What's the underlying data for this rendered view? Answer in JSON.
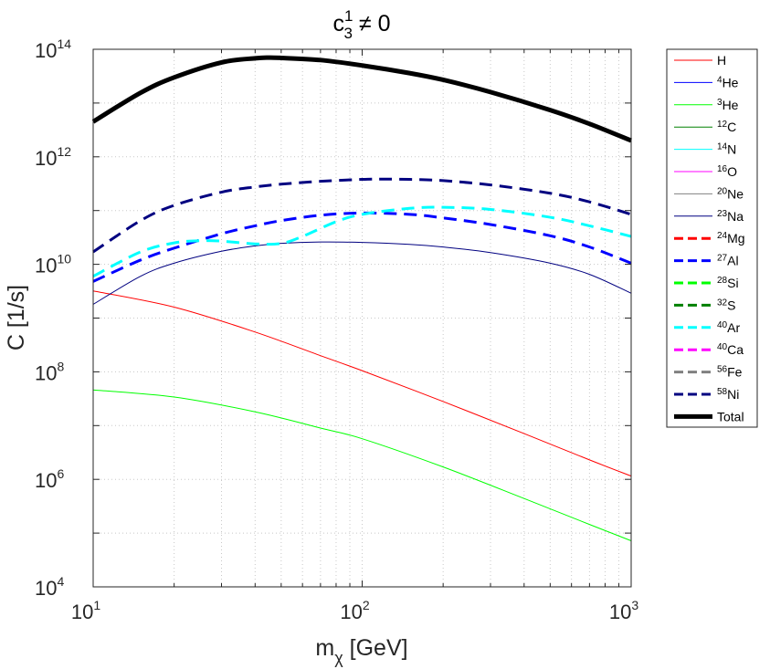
{
  "chart_data": {
    "type": "line",
    "title": "c",
    "title_sub": "3",
    "title_sup": "1",
    "title_rest": " ≠ 0",
    "xlabel": "m",
    "xlabel_sub": "χ",
    "xlabel_rest": " [GeV]",
    "ylabel": "C [1/s]",
    "xscale": "log",
    "yscale": "log",
    "xlim": [
      10,
      1000
    ],
    "ylim": [
      10000,
      100000000000000
    ],
    "grid": true,
    "legend_position": "outside-right",
    "x_ticks": [
      {
        "value": 10,
        "base": "10",
        "exp": "1"
      },
      {
        "value": 100,
        "base": "10",
        "exp": "2"
      },
      {
        "value": 1000,
        "base": "10",
        "exp": "3"
      }
    ],
    "y_ticks": [
      {
        "value": 10000,
        "base": "10",
        "exp": "4"
      },
      {
        "value": 1000000,
        "base": "10",
        "exp": "6"
      },
      {
        "value": 100000000,
        "base": "10",
        "exp": "8"
      },
      {
        "value": 10000000000,
        "base": "10",
        "exp": "10"
      },
      {
        "value": 1000000000000,
        "base": "10",
        "exp": "12"
      },
      {
        "value": 100000000000000,
        "base": "10",
        "exp": "14"
      }
    ],
    "series": [
      {
        "name": "H",
        "label_sup": "",
        "label_text": "H",
        "color": "#ff0000",
        "dash": "solid",
        "width": 1,
        "x": [
          10,
          20,
          40,
          70,
          100,
          200,
          400,
          700,
          1000
        ],
        "values": [
          3200000000.0,
          1600000000.0,
          550000000.0,
          200000000.0,
          105000000.0,
          28000000.0,
          7100000.0,
          2300000.0,
          1150000.0
        ]
      },
      {
        "name": "4He",
        "label_sup": "4",
        "label_text": "He",
        "color": "#0000ff",
        "dash": "solid",
        "width": 1,
        "x": [],
        "values": []
      },
      {
        "name": "3He",
        "label_sup": "3",
        "label_text": "He",
        "color": "#00ff00",
        "dash": "solid",
        "width": 1,
        "x": [
          10,
          20,
          40,
          70,
          100,
          200,
          400,
          700,
          1000
        ],
        "values": [
          46000000.0,
          34000000.0,
          18000000.0,
          9000000.0,
          5700000.0,
          1700000.0,
          440000.0,
          145000.0,
          72000.0
        ]
      },
      {
        "name": "12C",
        "label_sup": "12",
        "label_text": "C",
        "color": "#008000",
        "dash": "solid",
        "width": 1,
        "x": [],
        "values": []
      },
      {
        "name": "14N",
        "label_sup": "14",
        "label_text": "N",
        "color": "#00ffff",
        "dash": "solid",
        "width": 1,
        "x": [],
        "values": []
      },
      {
        "name": "16O",
        "label_sup": "16",
        "label_text": "O",
        "color": "#ff00ff",
        "dash": "solid",
        "width": 1,
        "x": [],
        "values": []
      },
      {
        "name": "20Ne",
        "label_sup": "20",
        "label_text": "Ne",
        "color": "#808080",
        "dash": "solid",
        "width": 1,
        "x": [],
        "values": []
      },
      {
        "name": "23Na",
        "label_sup": "23",
        "label_text": "Na",
        "color": "#000080",
        "dash": "solid",
        "width": 1,
        "x": [
          10,
          15,
          20,
          30,
          40,
          50,
          70,
          100,
          150,
          200,
          300,
          500,
          700,
          1000
        ],
        "values": [
          1800000000.0,
          6000000000.0,
          10500000000.0,
          17500000000.0,
          22000000000.0,
          24500000000.0,
          26000000000.0,
          25500000000.0,
          23500000000.0,
          21000000000.0,
          16500000000.0,
          10500000000.0,
          6500000000.0,
          2900000000.0
        ]
      },
      {
        "name": "24Mg",
        "label_sup": "24",
        "label_text": "Mg",
        "color": "#ff0000",
        "dash": "dashed",
        "width": 3,
        "x": [],
        "values": []
      },
      {
        "name": "27Al",
        "label_sup": "27",
        "label_text": "Al",
        "color": "#0000ff",
        "dash": "dashed",
        "width": 3,
        "x": [
          10,
          15,
          20,
          30,
          40,
          50,
          70,
          100,
          150,
          200,
          300,
          500,
          700,
          1000
        ],
        "values": [
          4800000000.0,
          12000000000.0,
          20000000000.0,
          37000000000.0,
          52000000000.0,
          65000000000.0,
          82000000000.0,
          90000000000.0,
          85000000000.0,
          73000000000.0,
          55000000000.0,
          34000000000.0,
          21000000000.0,
          10500000000.0
        ]
      },
      {
        "name": "28Si",
        "label_sup": "28",
        "label_text": "Si",
        "color": "#00ff00",
        "dash": "dashed",
        "width": 3,
        "x": [],
        "values": []
      },
      {
        "name": "32S",
        "label_sup": "32",
        "label_text": "S",
        "color": "#008000",
        "dash": "dashed",
        "width": 3,
        "x": [],
        "values": []
      },
      {
        "name": "40Ar",
        "label_sup": "40",
        "label_text": "Ar",
        "color": "#00ffff",
        "dash": "dashed",
        "width": 3,
        "x": [
          10,
          15,
          20,
          25,
          30,
          40,
          50,
          60,
          80,
          100,
          150,
          200,
          300,
          500,
          700,
          1000
        ],
        "values": [
          6000000000.0,
          17000000000.0,
          25000000000.0,
          27500000000.0,
          27000000000.0,
          24000000000.0,
          24500000000.0,
          33000000000.0,
          62000000000.0,
          85000000000.0,
          110000000000.0,
          115000000000.0,
          105000000000.0,
          75000000000.0,
          52000000000.0,
          33000000000.0
        ]
      },
      {
        "name": "40Ca",
        "label_sup": "40",
        "label_text": "Ca",
        "color": "#ff00ff",
        "dash": "dashed",
        "width": 3,
        "x": [],
        "values": []
      },
      {
        "name": "56Fe",
        "label_sup": "56",
        "label_text": "Fe",
        "color": "#808080",
        "dash": "dashed",
        "width": 3,
        "x": [],
        "values": []
      },
      {
        "name": "58Ni",
        "label_sup": "58",
        "label_text": "Ni",
        "color": "#000080",
        "dash": "dashed",
        "width": 3,
        "x": [
          10,
          15,
          20,
          30,
          40,
          50,
          70,
          100,
          120,
          150,
          200,
          300,
          500,
          700,
          1000
        ],
        "values": [
          17000000000.0,
          65000000000.0,
          125000000000.0,
          220000000000.0,
          275000000000.0,
          310000000000.0,
          350000000000.0,
          380000000000.0,
          385000000000.0,
          380000000000.0,
          360000000000.0,
          300000000000.0,
          210000000000.0,
          145000000000.0,
          85000000000.0
        ]
      },
      {
        "name": "Total",
        "label_sup": "",
        "label_text": "Total",
        "color": "#000000",
        "dash": "solid",
        "width": 5,
        "x": [
          10,
          15,
          20,
          30,
          40,
          45,
          50,
          70,
          100,
          150,
          200,
          300,
          500,
          700,
          1000
        ],
        "values": [
          4500000000000.0,
          15500000000000.0,
          30000000000000.0,
          57000000000000.0,
          68000000000000.0,
          70000000000000.0,
          69000000000000.0,
          63000000000000.0,
          50000000000000.0,
          36000000000000.0,
          27000000000000.0,
          16000000000000.0,
          7400000000000.0,
          4100000000000.0,
          2000000000000.0
        ]
      }
    ]
  }
}
